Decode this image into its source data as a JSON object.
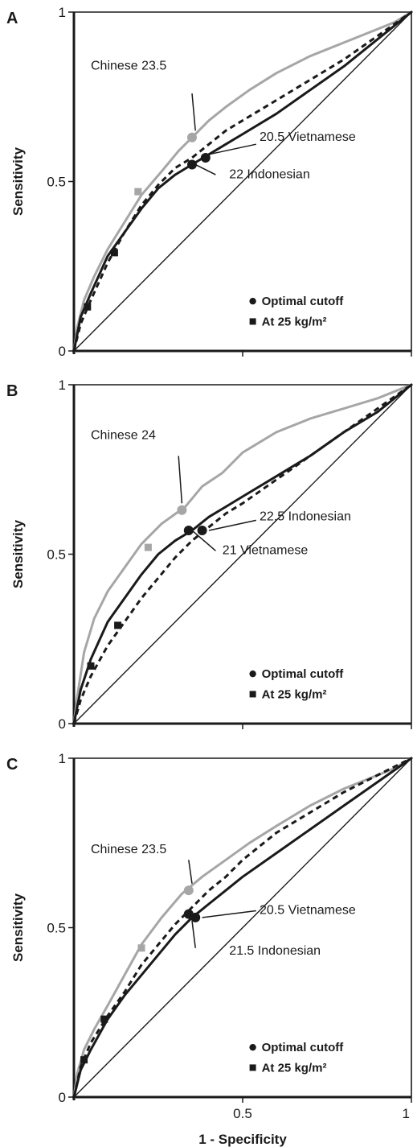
{
  "chart_data": [
    {
      "type": "line",
      "panel_label": "A",
      "xlabel": "",
      "ylabel": "Sensitivity",
      "xlim": [
        0,
        1
      ],
      "ylim": [
        0,
        1
      ],
      "x_ticks": [
        {
          "value": 0.5,
          "label": ""
        },
        {
          "value": 1,
          "label": ""
        }
      ],
      "y_ticks": [
        {
          "value": 0,
          "label": "0"
        },
        {
          "value": 0.5,
          "label": "0.5"
        },
        {
          "value": 1,
          "label": "1"
        }
      ],
      "reference_diagonal": true,
      "series": [
        {
          "name": "Chinese",
          "color": "#a6a6a6",
          "style": "solid",
          "x": [
            0,
            0.01,
            0.03,
            0.06,
            0.1,
            0.15,
            0.2,
            0.26,
            0.31,
            0.35,
            0.4,
            0.45,
            0.52,
            0.6,
            0.7,
            0.8,
            0.9,
            0.95,
            1
          ],
          "y": [
            0,
            0.07,
            0.15,
            0.22,
            0.3,
            0.38,
            0.46,
            0.53,
            0.59,
            0.63,
            0.68,
            0.72,
            0.77,
            0.82,
            0.87,
            0.91,
            0.95,
            0.97,
            1
          ]
        },
        {
          "name": "Indonesian",
          "color": "#1a1a1a",
          "style": "dashed",
          "x": [
            0,
            0.02,
            0.05,
            0.1,
            0.15,
            0.2,
            0.25,
            0.3,
            0.35,
            0.4,
            0.45,
            0.5,
            0.6,
            0.7,
            0.8,
            0.9,
            1
          ],
          "y": [
            0,
            0.08,
            0.15,
            0.26,
            0.35,
            0.43,
            0.49,
            0.54,
            0.57,
            0.61,
            0.65,
            0.68,
            0.74,
            0.8,
            0.86,
            0.93,
            1
          ]
        },
        {
          "name": "Vietnamese",
          "color": "#1a1a1a",
          "style": "solid",
          "x": [
            0,
            0.02,
            0.05,
            0.1,
            0.15,
            0.2,
            0.25,
            0.3,
            0.35,
            0.4,
            0.45,
            0.5,
            0.6,
            0.7,
            0.8,
            0.9,
            1
          ],
          "y": [
            0,
            0.1,
            0.17,
            0.28,
            0.35,
            0.42,
            0.48,
            0.52,
            0.55,
            0.58,
            0.61,
            0.64,
            0.7,
            0.77,
            0.84,
            0.92,
            1
          ]
        }
      ],
      "optimal_cutoffs": [
        {
          "series": "Chinese",
          "x": 0.35,
          "y": 0.63
        },
        {
          "series": "Vietnamese",
          "x": 0.39,
          "y": 0.57
        },
        {
          "series": "Indonesian",
          "x": 0.35,
          "y": 0.55
        }
      ],
      "at_25_points": [
        {
          "series": "Chinese",
          "x": 0.19,
          "y": 0.47
        },
        {
          "series": "Vietnamese",
          "x": 0.12,
          "y": 0.29
        },
        {
          "series": "Indonesian",
          "x": 0.04,
          "y": 0.13
        }
      ],
      "annotations": [
        {
          "text": "Chinese 23.5",
          "tx": 0.05,
          "ty": 0.83,
          "line": [
            [
              0.35,
              0.76
            ],
            [
              0.36,
              0.65
            ]
          ]
        },
        {
          "text": "20.5 Vietnamese",
          "tx": 0.55,
          "ty": 0.62,
          "line": [
            [
              0.54,
              0.61
            ],
            [
              0.4,
              0.58
            ]
          ]
        },
        {
          "text": "22 Indonesian",
          "tx": 0.46,
          "ty": 0.51,
          "line": [
            [
              0.42,
              0.52
            ],
            [
              0.36,
              0.55
            ]
          ]
        }
      ],
      "legend": {
        "position": "bottom-right",
        "items": [
          {
            "marker": "circle",
            "text": "Optimal cutoff"
          },
          {
            "marker": "square",
            "text": "At 25 kg/m²"
          }
        ]
      }
    },
    {
      "type": "line",
      "panel_label": "B",
      "xlabel": "",
      "ylabel": "Sensitivity",
      "xlim": [
        0,
        1
      ],
      "ylim": [
        0,
        1
      ],
      "x_ticks": [
        {
          "value": 0.5,
          "label": ""
        },
        {
          "value": 1,
          "label": ""
        }
      ],
      "y_ticks": [
        {
          "value": 0,
          "label": "0"
        },
        {
          "value": 0.5,
          "label": "0.5"
        },
        {
          "value": 1,
          "label": "1"
        }
      ],
      "reference_diagonal": true,
      "series": [
        {
          "name": "Chinese",
          "color": "#a6a6a6",
          "style": "solid",
          "x": [
            0,
            0.01,
            0.03,
            0.06,
            0.1,
            0.15,
            0.2,
            0.26,
            0.33,
            0.38,
            0.44,
            0.5,
            0.6,
            0.7,
            0.8,
            0.9,
            0.95,
            1
          ],
          "y": [
            0,
            0.08,
            0.21,
            0.31,
            0.39,
            0.46,
            0.53,
            0.59,
            0.64,
            0.7,
            0.74,
            0.8,
            0.86,
            0.9,
            0.93,
            0.96,
            0.98,
            1
          ]
        },
        {
          "name": "Indonesian",
          "color": "#1a1a1a",
          "style": "dashed",
          "x": [
            0,
            0.02,
            0.05,
            0.1,
            0.15,
            0.2,
            0.25,
            0.3,
            0.35,
            0.4,
            0.45,
            0.5,
            0.6,
            0.7,
            0.8,
            0.9,
            1
          ],
          "y": [
            0,
            0.07,
            0.14,
            0.23,
            0.3,
            0.37,
            0.43,
            0.49,
            0.54,
            0.58,
            0.62,
            0.65,
            0.72,
            0.79,
            0.86,
            0.93,
            1
          ]
        },
        {
          "name": "Vietnamese",
          "color": "#1a1a1a",
          "style": "solid",
          "x": [
            0,
            0.02,
            0.05,
            0.1,
            0.15,
            0.2,
            0.25,
            0.3,
            0.35,
            0.4,
            0.45,
            0.5,
            0.6,
            0.7,
            0.8,
            0.9,
            1
          ],
          "y": [
            0,
            0.1,
            0.19,
            0.3,
            0.37,
            0.44,
            0.5,
            0.54,
            0.57,
            0.61,
            0.64,
            0.67,
            0.73,
            0.79,
            0.86,
            0.92,
            1
          ]
        }
      ],
      "optimal_cutoffs": [
        {
          "series": "Chinese",
          "x": 0.32,
          "y": 0.63
        },
        {
          "series": "Vietnamese",
          "x": 0.34,
          "y": 0.57
        },
        {
          "series": "Indonesian",
          "x": 0.38,
          "y": 0.57
        }
      ],
      "at_25_points": [
        {
          "series": "Chinese",
          "x": 0.22,
          "y": 0.52
        },
        {
          "series": "Vietnamese",
          "x": 0.13,
          "y": 0.29
        },
        {
          "series": "Indonesian",
          "x": 0.05,
          "y": 0.17
        }
      ],
      "annotations": [
        {
          "text": "Chinese 24",
          "tx": 0.05,
          "ty": 0.84,
          "line": [
            [
              0.31,
              0.79
            ],
            [
              0.32,
              0.65
            ]
          ]
        },
        {
          "text": "22.5 Indonesian",
          "tx": 0.55,
          "ty": 0.6,
          "line": [
            [
              0.54,
              0.6
            ],
            [
              0.4,
              0.57
            ]
          ]
        },
        {
          "text": "21 Vietnamese",
          "tx": 0.44,
          "ty": 0.5,
          "line": [
            [
              0.42,
              0.51
            ],
            [
              0.35,
              0.57
            ]
          ]
        }
      ],
      "legend": {
        "position": "bottom-right",
        "items": [
          {
            "marker": "circle",
            "text": "Optimal cutoff"
          },
          {
            "marker": "square",
            "text": "At 25 kg/m²"
          }
        ]
      }
    },
    {
      "type": "line",
      "panel_label": "C",
      "xlabel": "1 - Specificity",
      "ylabel": "Sensitivity",
      "xlim": [
        0,
        1
      ],
      "ylim": [
        0,
        1
      ],
      "x_ticks": [
        {
          "value": 0.5,
          "label": "0.5"
        },
        {
          "value": 1,
          "label": "1"
        }
      ],
      "y_ticks": [
        {
          "value": 0,
          "label": "0"
        },
        {
          "value": 0.5,
          "label": "0.5"
        },
        {
          "value": 1,
          "label": "1"
        }
      ],
      "reference_diagonal": true,
      "series": [
        {
          "name": "Chinese",
          "color": "#a6a6a6",
          "style": "solid",
          "x": [
            0,
            0.01,
            0.03,
            0.06,
            0.1,
            0.15,
            0.2,
            0.26,
            0.32,
            0.38,
            0.45,
            0.52,
            0.6,
            0.7,
            0.8,
            0.9,
            0.95,
            1
          ],
          "y": [
            0,
            0.07,
            0.14,
            0.2,
            0.27,
            0.36,
            0.45,
            0.53,
            0.6,
            0.65,
            0.7,
            0.75,
            0.8,
            0.86,
            0.91,
            0.95,
            0.97,
            1
          ]
        },
        {
          "name": "Indonesian",
          "color": "#1a1a1a",
          "style": "dashed",
          "x": [
            0,
            0.02,
            0.05,
            0.1,
            0.15,
            0.2,
            0.25,
            0.3,
            0.35,
            0.4,
            0.45,
            0.5,
            0.6,
            0.7,
            0.8,
            0.9,
            1
          ],
          "y": [
            0,
            0.09,
            0.16,
            0.24,
            0.31,
            0.39,
            0.45,
            0.51,
            0.56,
            0.61,
            0.65,
            0.7,
            0.78,
            0.84,
            0.9,
            0.95,
            1
          ]
        },
        {
          "name": "Vietnamese",
          "color": "#1a1a1a",
          "style": "solid",
          "x": [
            0,
            0.02,
            0.05,
            0.1,
            0.15,
            0.2,
            0.25,
            0.3,
            0.35,
            0.4,
            0.45,
            0.5,
            0.6,
            0.7,
            0.8,
            0.9,
            1
          ],
          "y": [
            0,
            0.08,
            0.14,
            0.23,
            0.3,
            0.36,
            0.42,
            0.48,
            0.53,
            0.57,
            0.61,
            0.65,
            0.72,
            0.79,
            0.86,
            0.93,
            1
          ]
        }
      ],
      "optimal_cutoffs": [
        {
          "series": "Chinese",
          "x": 0.34,
          "y": 0.61
        },
        {
          "series": "Vietnamese",
          "x": 0.36,
          "y": 0.53
        },
        {
          "series": "Indonesian",
          "x": 0.34,
          "y": 0.54
        }
      ],
      "at_25_points": [
        {
          "series": "Chinese",
          "x": 0.2,
          "y": 0.44
        },
        {
          "series": "Vietnamese",
          "x": 0.09,
          "y": 0.23
        },
        {
          "series": "Indonesian",
          "x": 0.03,
          "y": 0.11
        }
      ],
      "annotations": [
        {
          "text": "Chinese 23.5",
          "tx": 0.05,
          "ty": 0.72,
          "line": [
            [
              0.34,
              0.7
            ],
            [
              0.35,
              0.63
            ]
          ]
        },
        {
          "text": "20.5 Vietnamese",
          "tx": 0.55,
          "ty": 0.54,
          "line": [
            [
              0.54,
              0.55
            ],
            [
              0.38,
              0.53
            ]
          ]
        },
        {
          "text": "21.5 Indonesian",
          "tx": 0.46,
          "ty": 0.42,
          "line": [
            [
              0.36,
              0.44
            ],
            [
              0.35,
              0.52
            ]
          ]
        }
      ],
      "legend": {
        "position": "bottom-right",
        "items": [
          {
            "marker": "circle",
            "text": "Optimal cutoff"
          },
          {
            "marker": "square",
            "text": "At 25 kg/m²"
          }
        ]
      }
    }
  ]
}
